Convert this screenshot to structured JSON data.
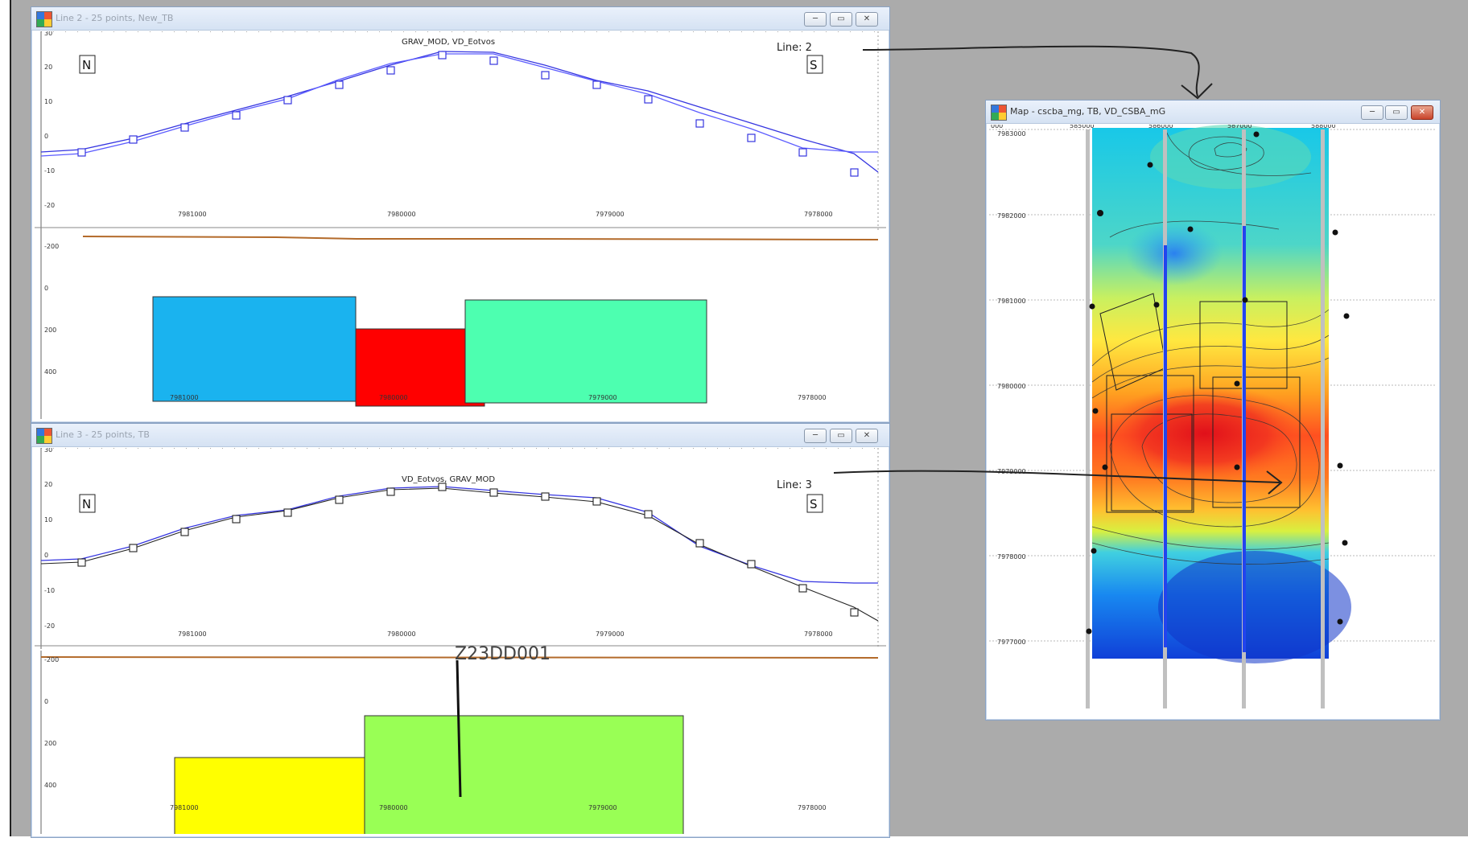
{
  "windows": {
    "line2": {
      "title": "Line 2 - 25 points, New_TB",
      "profile_title": "GRAV_MOD, VD_Eotvos",
      "line_label": "Line: 2",
      "left_marker": "N",
      "right_marker": "S",
      "y_ticks": [
        "30",
        "20",
        "10",
        "0",
        "-10",
        "-20"
      ],
      "x_ticks": [
        "7981000",
        "7980000",
        "7979000",
        "7978000"
      ],
      "depth_ticks": [
        "-200",
        "0",
        "200",
        "400"
      ],
      "block_x_ticks": [
        "7981000",
        "7980000",
        "7979000",
        "7978000"
      ],
      "blocks": [
        {
          "name": "block-blue",
          "color": "#1ab3ef"
        },
        {
          "name": "block-red",
          "color": "#ff0000"
        },
        {
          "name": "block-teal",
          "color": "#4dffb0"
        }
      ],
      "series": [
        {
          "name": "GRAV_MOD",
          "color": "#3b3bd6"
        },
        {
          "name": "VD_Eotvos",
          "color": "#6a6aff"
        }
      ],
      "buttons": {
        "minimize": "─",
        "maximize": "▭",
        "close": "✕"
      }
    },
    "line3": {
      "title": "Line 3 - 25 points, TB",
      "profile_title": "VD_Eotvos, GRAV_MOD",
      "line_label": "Line: 3",
      "left_marker": "N",
      "right_marker": "S",
      "y_ticks": [
        "30",
        "20",
        "10",
        "0",
        "-10",
        "-20"
      ],
      "x_ticks": [
        "7981000",
        "7980000",
        "7979000",
        "7978000"
      ],
      "depth_ticks": [
        "-200",
        "0",
        "200",
        "400"
      ],
      "block_x_ticks": [
        "7981000",
        "7980000",
        "7979000",
        "7978000"
      ],
      "blocks": [
        {
          "name": "block-yellow",
          "color": "#ffff00"
        },
        {
          "name": "block-green",
          "color": "#99ff55"
        }
      ],
      "drillhole_label": "Z23DD001",
      "buttons": {
        "minimize": "─",
        "maximize": "▭",
        "close": "✕"
      }
    },
    "map": {
      "title": "Map - cscba_mg, TB, VD_CSBA_mG",
      "x_ticks": [
        "000",
        "585000",
        "586000",
        "587000",
        "588000"
      ],
      "y_ticks": [
        "7983000",
        "7982000",
        "7981000",
        "7980000",
        "7979000",
        "7978000",
        "7977000"
      ],
      "buttons": {
        "minimize": "─",
        "maximize": "▭",
        "close": "✕"
      }
    }
  },
  "colors": {
    "desktop": "#ababab",
    "window_border": "#8aa3c4",
    "curve_blue": "#3535e0",
    "curve_black": "#222222",
    "topo_line": "#b36a2a"
  }
}
